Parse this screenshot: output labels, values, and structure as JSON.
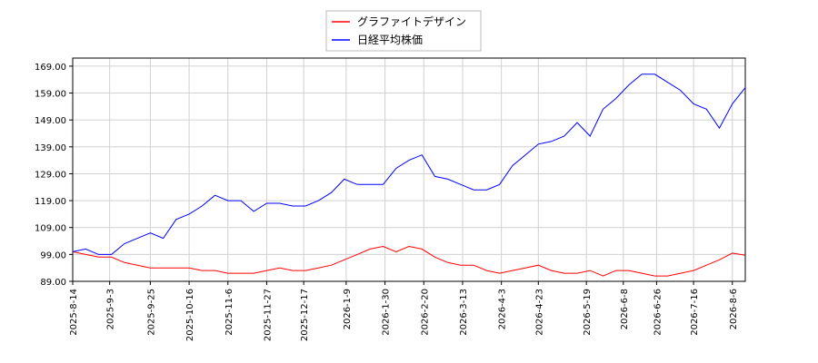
{
  "chart_data": {
    "type": "line",
    "x": [
      "2025-8-14",
      "2025-8-21",
      "2025-8-28",
      "2025-9-4",
      "2025-9-11",
      "2025-9-18",
      "2025-9-25",
      "2025-10-2",
      "2025-10-9",
      "2025-10-16",
      "2025-10-23",
      "2025-10-30",
      "2025-11-6",
      "2025-11-13",
      "2025-11-20",
      "2025-11-27",
      "2025-12-4",
      "2025-12-11",
      "2025-12-18",
      "2025-12-25",
      "2026-1-1",
      "2026-1-8",
      "2026-1-15",
      "2026-1-22",
      "2026-1-29",
      "2026-2-5",
      "2026-2-12",
      "2026-2-19",
      "2026-2-26",
      "2026-3-5",
      "2026-3-12",
      "2026-3-19",
      "2026-3-26",
      "2026-4-2",
      "2026-4-9",
      "2026-4-16",
      "2026-4-23",
      "2026-4-30",
      "2026-5-7",
      "2026-5-14",
      "2026-5-21",
      "2026-5-28",
      "2026-6-4",
      "2026-6-11",
      "2026-6-18",
      "2026-6-25",
      "2026-7-2",
      "2026-7-9",
      "2026-7-16",
      "2026-7-23",
      "2026-7-30",
      "2026-8-6",
      "2026-8-13"
    ],
    "series": [
      {
        "name": "グラファイトデザイン",
        "color": "#ff0000",
        "values": [
          100,
          99,
          98,
          98,
          96,
          95,
          94,
          94,
          94,
          94,
          93,
          93,
          92,
          92,
          92,
          93,
          94,
          93,
          93,
          94,
          95,
          97,
          99,
          101,
          102,
          100,
          102,
          101,
          98,
          96,
          95,
          95,
          93,
          92,
          93,
          94,
          95,
          93,
          92,
          92,
          93,
          91,
          93,
          93,
          92,
          91,
          91,
          92,
          93,
          95,
          97,
          99.5,
          98.7
        ]
      },
      {
        "name": "日経平均株価",
        "color": "#0000ff",
        "values": [
          100,
          101,
          99,
          99,
          103,
          105,
          107,
          105,
          112,
          114,
          117,
          121,
          119,
          119,
          115,
          118,
          118,
          117,
          117,
          119,
          122,
          127,
          125,
          125,
          125,
          131,
          134,
          136,
          128,
          127,
          125,
          123,
          123,
          125,
          132,
          136,
          140,
          141,
          143,
          148,
          143,
          153,
          157,
          162,
          166,
          166,
          163,
          160,
          155,
          153,
          146,
          155,
          161
        ]
      }
    ],
    "xlim": [
      "2025-8-14",
      "2026-8-13"
    ],
    "xticks": [
      "2025-8-14",
      "2025-9-3",
      "2025-9-25",
      "2025-10-16",
      "2025-11-6",
      "2025-11-27",
      "2025-12-17",
      "2026-1-9",
      "2026-1-30",
      "2026-2-20",
      "2026-3-13",
      "2026-4-3",
      "2026-4-23",
      "2026-5-19",
      "2026-6-8",
      "2026-6-26",
      "2026-7-16",
      "2026-8-6"
    ],
    "ylim": [
      89,
      172
    ],
    "yticks": [
      {
        "value": 89,
        "label": "89.00"
      },
      {
        "value": 99,
        "label": "99.00"
      },
      {
        "value": 109,
        "label": "109.00"
      },
      {
        "value": 119,
        "label": "119.00"
      },
      {
        "value": 129,
        "label": "129.00"
      },
      {
        "value": 139,
        "label": "139.00"
      },
      {
        "value": 149,
        "label": "149.00"
      },
      {
        "value": 159,
        "label": "159.00"
      },
      {
        "value": 169,
        "label": "169.00"
      }
    ],
    "grid": true,
    "legend": "upper center"
  }
}
